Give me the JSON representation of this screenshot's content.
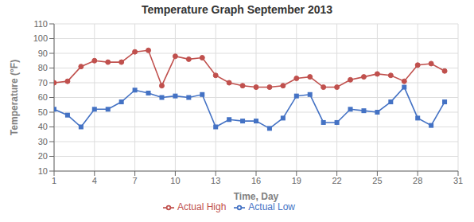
{
  "chart_data": {
    "type": "line",
    "title": "Temperature Graph September 2013",
    "xlabel": "Time, Day",
    "ylabel": "Temperature (°F)",
    "x": [
      1,
      2,
      3,
      4,
      5,
      6,
      7,
      8,
      9,
      10,
      11,
      12,
      13,
      14,
      15,
      16,
      17,
      18,
      19,
      20,
      21,
      22,
      23,
      24,
      25,
      26,
      27,
      28,
      29,
      30
    ],
    "series": [
      {
        "name": "Actual High",
        "color": "#C0504D",
        "marker": "circle",
        "values": [
          70,
          71,
          81,
          85,
          84,
          84,
          91,
          92,
          68,
          88,
          86,
          87,
          75,
          70,
          68,
          67,
          67,
          68,
          73,
          74,
          67,
          67,
          72,
          74,
          76,
          75,
          71,
          82,
          83,
          78
        ]
      },
      {
        "name": "Actual Low",
        "color": "#4472C4",
        "marker": "square",
        "values": [
          52,
          48,
          40,
          52,
          52,
          57,
          65,
          63,
          60,
          61,
          60,
          62,
          40,
          45,
          44,
          44,
          39,
          46,
          61,
          62,
          43,
          43,
          52,
          51,
          50,
          57,
          67,
          46,
          41,
          57
        ]
      }
    ],
    "xlim": [
      1,
      31
    ],
    "xticks": [
      1,
      4,
      7,
      10,
      13,
      16,
      19,
      22,
      25,
      28,
      31
    ],
    "ylim": [
      10,
      110
    ],
    "yticks": [
      10,
      20,
      30,
      40,
      50,
      60,
      70,
      80,
      90,
      100,
      110
    ],
    "grid": true,
    "legend": "lower center"
  }
}
